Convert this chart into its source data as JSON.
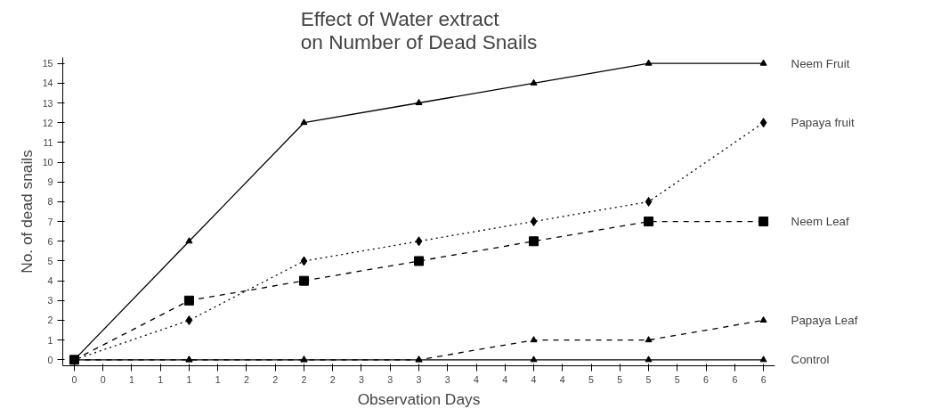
{
  "chart_data": {
    "type": "line",
    "title": "Effect of Water extract\non Number of Dead Snails",
    "xlabel": "Observation Days",
    "ylabel": "No. of dead snails",
    "x": [
      0,
      1,
      2,
      3,
      4,
      5,
      6
    ],
    "series": [
      {
        "name": "Neem Fruit",
        "color": "#000000",
        "marker": "triangle",
        "line_style": "solid",
        "values": [
          0,
          6,
          12,
          13,
          14,
          15,
          15
        ]
      },
      {
        "name": "Papaya fruit",
        "color": "#000000",
        "marker": "diamond",
        "line_style": "dotted",
        "values": [
          0,
          2,
          5,
          6,
          7,
          8,
          12
        ]
      },
      {
        "name": "Neem Leaf",
        "color": "#000000",
        "marker": "square",
        "line_style": "dashed",
        "values": [
          0,
          3,
          4,
          5,
          6,
          7,
          7
        ]
      },
      {
        "name": "Papaya Leaf",
        "color": "#000000",
        "marker": "triangle",
        "line_style": "dashed",
        "values": [
          0,
          0,
          0,
          0,
          1,
          1,
          2
        ]
      },
      {
        "name": "Control",
        "color": "#000000",
        "marker": "triangle",
        "line_style": "solid",
        "values": [
          0,
          0,
          0,
          0,
          0,
          0,
          0
        ]
      }
    ],
    "xlim": [
      -0.1,
      6.1
    ],
    "ylim": [
      -0.3,
      15.3
    ],
    "xticks": [
      0,
      {
        "value": 0.25,
        "label": "0"
      },
      {
        "value": 0.5,
        "label": "1"
      },
      {
        "value": 0.75,
        "label": "1"
      },
      1,
      {
        "value": 1.25,
        "label": "1"
      },
      {
        "value": 1.5,
        "label": "2"
      },
      {
        "value": 1.75,
        "label": "2"
      },
      2,
      {
        "value": 2.25,
        "label": "2"
      },
      {
        "value": 2.5,
        "label": "3"
      },
      {
        "value": 2.75,
        "label": "3"
      },
      3,
      {
        "value": 3.25,
        "label": "3"
      },
      {
        "value": 3.5,
        "label": "4"
      },
      {
        "value": 3.75,
        "label": "4"
      },
      4,
      {
        "value": 4.25,
        "label": "4"
      },
      {
        "value": 4.5,
        "label": "5"
      },
      {
        "value": 4.75,
        "label": "5"
      },
      5,
      {
        "value": 5.25,
        "label": "5"
      },
      {
        "value": 5.5,
        "label": "6"
      },
      {
        "value": 5.75,
        "label": "6"
      },
      6
    ],
    "yticks": [
      0,
      1,
      2,
      3,
      4,
      5,
      6,
      7,
      8,
      9,
      10,
      11,
      12,
      13,
      14,
      15
    ],
    "grid": false
  }
}
